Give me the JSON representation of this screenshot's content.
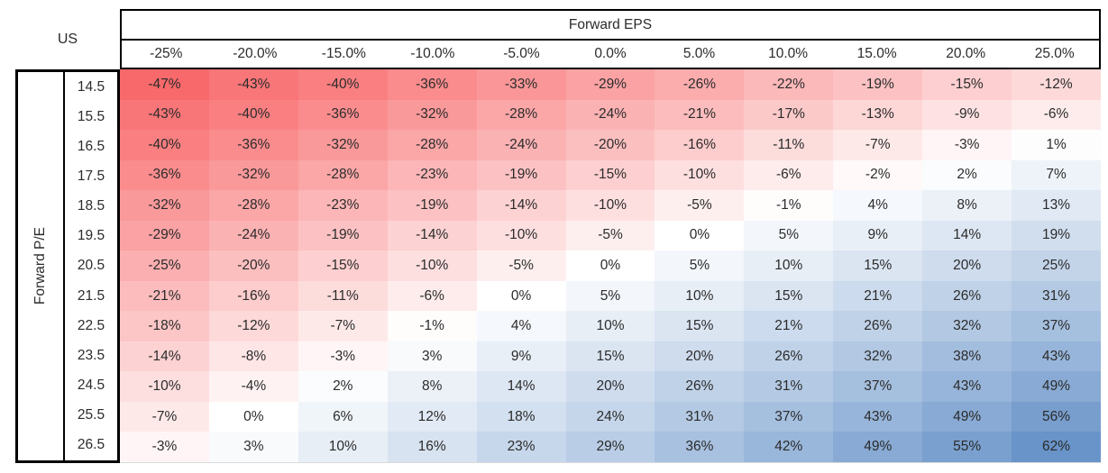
{
  "table": {
    "corner_label": "US",
    "col_axis_title": "Forward EPS",
    "row_axis_title": "Forward P/E"
  },
  "chart_data": {
    "type": "heatmap",
    "x_label": "Forward EPS",
    "y_label": "Forward P/E",
    "corner_label": "US",
    "columns": [
      "-25%",
      "-20.0%",
      "-15.0%",
      "-10.0%",
      "-5.0%",
      "0.0%",
      "5.0%",
      "10.0%",
      "15.0%",
      "20.0%",
      "25.0%"
    ],
    "rows": [
      "14.5",
      "15.5",
      "16.5",
      "17.5",
      "18.5",
      "19.5",
      "20.5",
      "21.5",
      "22.5",
      "23.5",
      "24.5",
      "25.5",
      "26.5"
    ],
    "values": [
      [
        -47,
        -43,
        -40,
        -36,
        -33,
        -29,
        -26,
        -22,
        -19,
        -15,
        -12
      ],
      [
        -43,
        -40,
        -36,
        -32,
        -28,
        -24,
        -21,
        -17,
        -13,
        -9,
        -6
      ],
      [
        -40,
        -36,
        -32,
        -28,
        -24,
        -20,
        -16,
        -11,
        -7,
        -3,
        1
      ],
      [
        -36,
        -32,
        -28,
        -23,
        -19,
        -15,
        -10,
        -6,
        -2,
        2,
        7
      ],
      [
        -32,
        -28,
        -23,
        -19,
        -14,
        -10,
        -5,
        -1,
        4,
        8,
        13
      ],
      [
        -29,
        -24,
        -19,
        -14,
        -10,
        -5,
        0,
        5,
        9,
        14,
        19
      ],
      [
        -25,
        -20,
        -15,
        -10,
        -5,
        0,
        5,
        10,
        15,
        20,
        25
      ],
      [
        -21,
        -16,
        -11,
        -6,
        0,
        5,
        10,
        15,
        21,
        26,
        31
      ],
      [
        -18,
        -12,
        -7,
        -1,
        4,
        10,
        15,
        21,
        26,
        32,
        37
      ],
      [
        -14,
        -8,
        -3,
        3,
        9,
        15,
        20,
        26,
        32,
        38,
        43
      ],
      [
        -10,
        -4,
        2,
        8,
        14,
        20,
        26,
        31,
        37,
        43,
        49
      ],
      [
        -7,
        0,
        6,
        12,
        18,
        24,
        31,
        37,
        43,
        49,
        56
      ],
      [
        -3,
        3,
        10,
        16,
        23,
        29,
        36,
        42,
        49,
        55,
        62
      ]
    ],
    "value_suffix": "%",
    "grid": false,
    "color_scale": {
      "min_value": -47,
      "mid_value": 0,
      "max_value": 62,
      "min_color": "#F8696B",
      "mid_color": "#FFFFFF",
      "max_color": "#6994C9"
    }
  }
}
